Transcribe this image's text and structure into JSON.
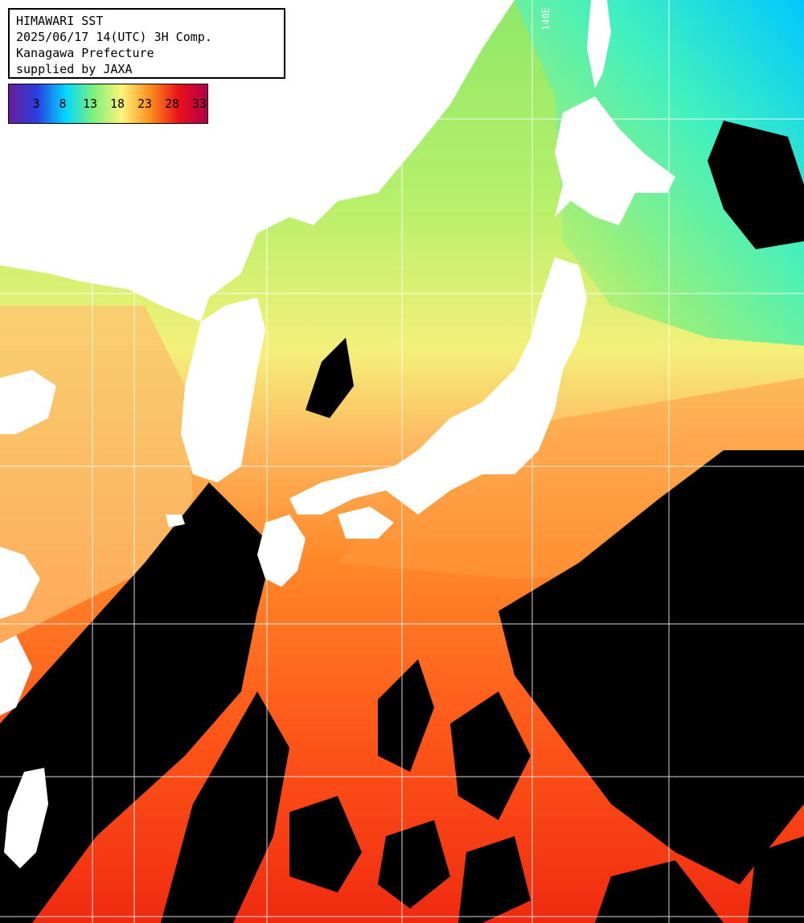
{
  "title": {
    "lines": [
      "HIMAWARI SST",
      "2025/06/17 14(UTC) 3H Comp.",
      "Kanagawa Prefecture",
      "supplied by JAXA"
    ]
  },
  "legend": {
    "labels": [
      "3",
      "8",
      "13",
      "18",
      "23",
      "28",
      "33"
    ],
    "stops": [
      "#6a1b9a",
      "#2a3fe0",
      "#00d8ff",
      "#7ff27a",
      "#fff27a",
      "#ff8c1a",
      "#e8101a",
      "#b0004a"
    ]
  },
  "map": {
    "longitude_label": "140E",
    "colors": {
      "land": "#ffffff",
      "cloud": "#000000",
      "grid": "#ffffff"
    }
  }
}
